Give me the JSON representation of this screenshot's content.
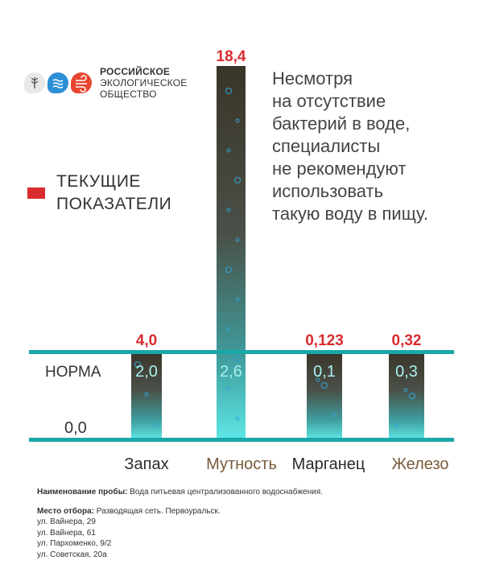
{
  "logo": {
    "line1": "РОССИЙСКОЕ",
    "line2": "ЭКОЛОГИЧЕСКОЕ",
    "line3": "ОБЩЕСТВО",
    "icons": [
      "tree-icon",
      "water-icon",
      "air-icon"
    ]
  },
  "legend": {
    "label": "ТЕКУЩИЕ\nПОКАЗАТЕЛИ",
    "color": "#d92b2f"
  },
  "note": "Несмотря\nна отсутствие\nбактерий в воде,\nспециалисты\nне рекомендуют\nиспользовать\nтакую воду в пищу.",
  "chart_data": {
    "type": "bar",
    "categories": [
      "Запах",
      "Мутность",
      "Марганец",
      "Железо"
    ],
    "category_colors": [
      "#2a2a2a",
      "#7a5a3a",
      "#2a2a2a",
      "#7a5a3a"
    ],
    "current_values": [
      4.0,
      18.4,
      0.123,
      0.32
    ],
    "current_labels": [
      "4,0",
      "18,4",
      "0,123",
      "0,32"
    ],
    "norm_labels": [
      "2,0",
      "2,6",
      "0,1",
      "0,3"
    ],
    "norm_line_label": "НОРМА",
    "zero_label": "0,0",
    "value_label_color": "#d92b2f",
    "line_color": "#1aa7a9"
  },
  "sample": {
    "name_label": "Наименование пробы:",
    "name_value": " Вода питьевая централизованного водоснабжения.",
    "place_label": "Место отбора:",
    "place_value": " Разводящая сеть. Первоуральск.",
    "addresses": [
      "ул. Вайнера, 29",
      "ул. Вайнера, 61",
      "ул. Пархоменко, 9/2",
      "ул. Советская, 20а"
    ]
  }
}
